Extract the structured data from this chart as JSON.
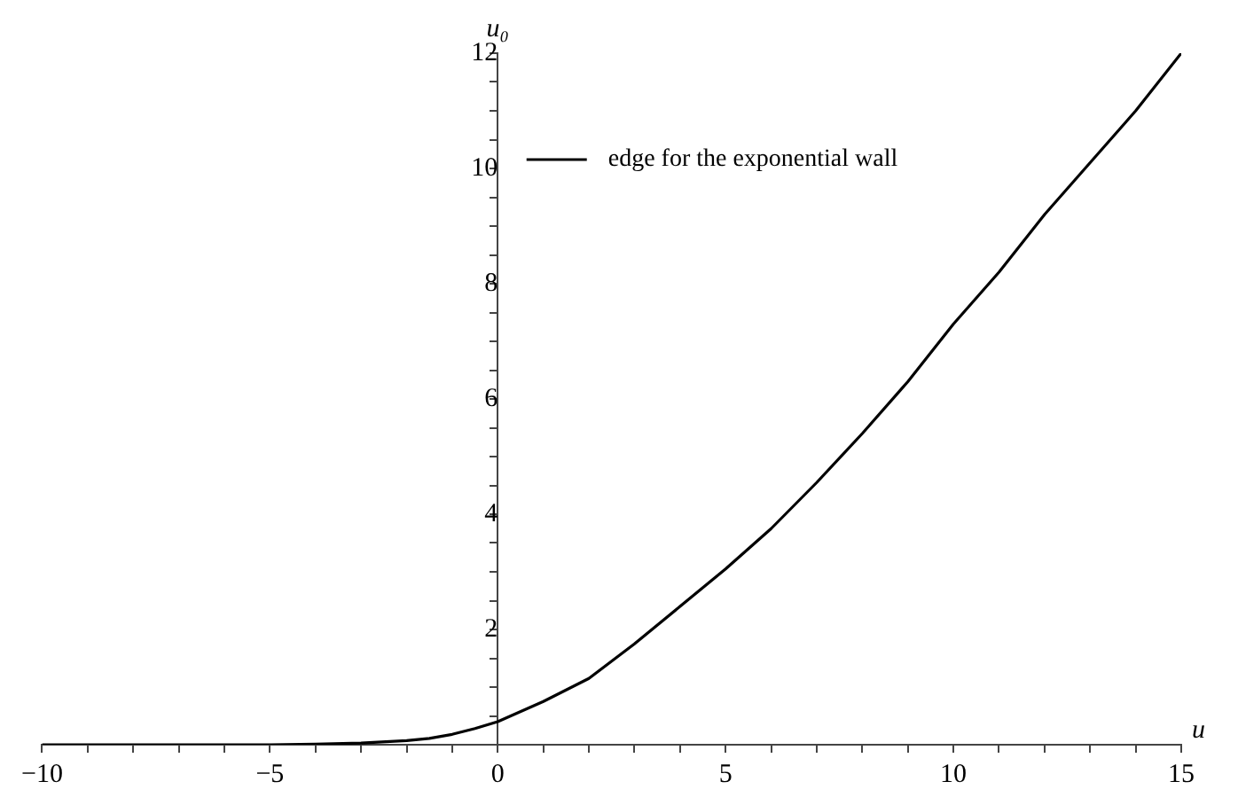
{
  "chart_data": {
    "type": "line",
    "xlabel": "u",
    "ylabel": "u₀",
    "xlim": [
      -10,
      15
    ],
    "ylim": [
      0,
      12
    ],
    "xticks": [
      -10,
      {
        "value": -9,
        "label": null
      },
      {
        "value": -8,
        "label": null
      },
      {
        "value": -7,
        "label": null
      },
      {
        "value": -6,
        "label": null
      },
      -5,
      {
        "value": -4,
        "label": null
      },
      {
        "value": -3,
        "label": null
      },
      {
        "value": -2,
        "label": null
      },
      {
        "value": -1,
        "label": null
      },
      0,
      {
        "value": 1,
        "label": null
      },
      {
        "value": 2,
        "label": null
      },
      {
        "value": 3,
        "label": null
      },
      {
        "value": 4,
        "label": null
      },
      5,
      {
        "value": 6,
        "label": null
      },
      {
        "value": 7,
        "label": null
      },
      {
        "value": 8,
        "label": null
      },
      {
        "value": 9,
        "label": null
      },
      10,
      {
        "value": 11,
        "label": null
      },
      {
        "value": 12,
        "label": null
      },
      {
        "value": 13,
        "label": null
      },
      {
        "value": 14,
        "label": null
      },
      15
    ],
    "yticks": [
      {
        "value": 0.5,
        "label": null
      },
      {
        "value": 1,
        "label": null
      },
      {
        "value": 1.5,
        "label": null
      },
      2,
      {
        "value": 2.5,
        "label": null
      },
      {
        "value": 3,
        "label": null
      },
      {
        "value": 3.5,
        "label": null
      },
      4,
      {
        "value": 4.5,
        "label": null
      },
      {
        "value": 5,
        "label": null
      },
      {
        "value": 5.5,
        "label": null
      },
      6,
      {
        "value": 6.5,
        "label": null
      },
      {
        "value": 7,
        "label": null
      },
      {
        "value": 7.5,
        "label": null
      },
      8,
      {
        "value": 8.5,
        "label": null
      },
      {
        "value": 9,
        "label": null
      },
      {
        "value": 9.5,
        "label": null
      },
      10,
      {
        "value": 10.5,
        "label": null
      },
      {
        "value": 11,
        "label": null
      },
      {
        "value": 11.5,
        "label": null
      },
      12
    ],
    "grid": false,
    "legend": "top",
    "marker": "none",
    "line_style": "solid",
    "series": [
      {
        "name": "edge for the exponential wall",
        "color": "#000000",
        "x": [
          -10,
          -8,
          -6,
          -5,
          -4,
          -3,
          -2,
          -1.5,
          -1,
          -0.5,
          0,
          1,
          2,
          3,
          4,
          5,
          6,
          7,
          8,
          9,
          10,
          11,
          12,
          13,
          14,
          15
        ],
        "values": [
          0,
          0,
          0,
          0,
          0.01,
          0.03,
          0.07,
          0.11,
          0.18,
          0.28,
          0.4,
          0.75,
          1.15,
          1.75,
          2.4,
          3.05,
          3.75,
          4.55,
          5.4,
          6.3,
          7.3,
          8.2,
          9.2,
          10.1,
          11.0,
          12.0
        ]
      }
    ]
  }
}
